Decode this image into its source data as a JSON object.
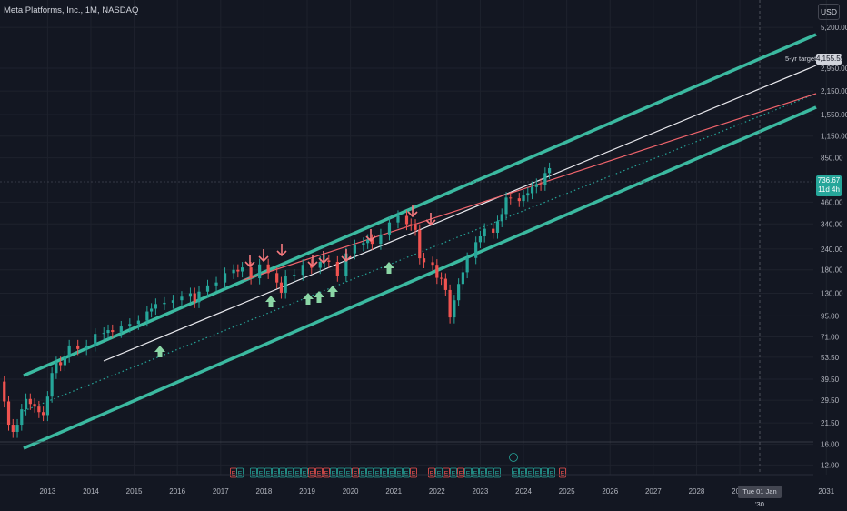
{
  "header": {
    "title": "Meta Platforms, Inc., 1M, NASDAQ",
    "currency": "USD"
  },
  "badges": {
    "last_price": "736.67",
    "last_price_countdown": "11d 4h",
    "target_label": "5-yr target",
    "target_price": "4,155.59",
    "crosshair_date": "Tue 01 Jan '30"
  },
  "colors": {
    "background": "#131722",
    "up": "#26a69a",
    "down": "#ef5350",
    "channel": "#3bb9a0",
    "trend_white": "#e9e9ee",
    "trend_red": "#f0646c",
    "mid_dotted": "#26a69a",
    "arrow_up": "#8bd6a5",
    "arrow_down": "#f77a7f"
  },
  "chart_data": {
    "type": "candlestick",
    "title": "Meta Platforms, Inc., 1M, NASDAQ",
    "x_axis": {
      "ticks": [
        "2013",
        "2014",
        "2015",
        "2016",
        "2017",
        "2018",
        "2019",
        "2020",
        "2021",
        "2022",
        "2023",
        "2024",
        "2025",
        "2026",
        "2027",
        "2028",
        "2029",
        "2031"
      ],
      "range": [
        2012.4,
        2031.2
      ]
    },
    "y_axis": {
      "scale": "log",
      "ticks": [
        "12.00",
        "16.00",
        "21.50",
        "29.50",
        "39.50",
        "53.50",
        "71.00",
        "95.00",
        "130.00",
        "180.00",
        "240.00",
        "340.00",
        "460.00",
        "850.00",
        "1,150.00",
        "1,550.00",
        "2,150.00",
        "2,950.00",
        "5,200.00"
      ],
      "range": [
        10.5,
        7600
      ]
    },
    "series": [
      {
        "points": [
          [
            2012.4,
            38.2
          ],
          [
            2012.5,
            29
          ],
          [
            2012.6,
            21
          ],
          [
            2012.7,
            19
          ],
          [
            2012.8,
            21
          ],
          [
            2012.9,
            26
          ],
          [
            2013.0,
            30
          ],
          [
            2013.1,
            28
          ],
          [
            2013.2,
            27
          ],
          [
            2013.3,
            25
          ],
          [
            2013.4,
            24
          ],
          [
            2013.5,
            31
          ],
          [
            2013.6,
            43
          ],
          [
            2013.7,
            50
          ],
          [
            2013.8,
            48
          ],
          [
            2013.9,
            54
          ],
          [
            2014.0,
            63
          ],
          [
            2014.2,
            60
          ],
          [
            2014.4,
            63
          ],
          [
            2014.6,
            74
          ],
          [
            2014.8,
            75
          ],
          [
            2014.9,
            78
          ],
          [
            2015.0,
            76
          ],
          [
            2015.2,
            82
          ],
          [
            2015.4,
            85
          ],
          [
            2015.6,
            89
          ],
          [
            2015.8,
            101
          ],
          [
            2015.9,
            105
          ],
          [
            2016.0,
            112
          ],
          [
            2016.2,
            114
          ],
          [
            2016.4,
            118
          ],
          [
            2016.6,
            124
          ],
          [
            2016.8,
            130
          ],
          [
            2016.9,
            115
          ],
          [
            2017.0,
            133
          ],
          [
            2017.2,
            145
          ],
          [
            2017.4,
            151
          ],
          [
            2017.6,
            172
          ],
          [
            2017.8,
            180
          ],
          [
            2017.9,
            176
          ],
          [
            2018.0,
            186
          ],
          [
            2018.2,
            160
          ],
          [
            2018.4,
            194
          ],
          [
            2018.6,
            172
          ],
          [
            2018.8,
            151
          ],
          [
            2018.9,
            131
          ],
          [
            2019.0,
            166
          ],
          [
            2019.2,
            168
          ],
          [
            2019.4,
            193
          ],
          [
            2019.6,
            185
          ],
          [
            2019.8,
            201
          ],
          [
            2019.9,
            205
          ],
          [
            2020.0,
            201
          ],
          [
            2020.2,
            166
          ],
          [
            2020.4,
            226
          ],
          [
            2020.6,
            253
          ],
          [
            2020.8,
            261
          ],
          [
            2020.9,
            273
          ],
          [
            2021.0,
            258
          ],
          [
            2021.2,
            294
          ],
          [
            2021.4,
            347
          ],
          [
            2021.6,
            380
          ],
          [
            2021.8,
            339
          ],
          [
            2021.9,
            336
          ],
          [
            2022.0,
            313
          ],
          [
            2022.1,
            211
          ],
          [
            2022.2,
            200
          ],
          [
            2022.4,
            193
          ],
          [
            2022.5,
            161
          ],
          [
            2022.6,
            159
          ],
          [
            2022.7,
            136
          ],
          [
            2022.8,
            93
          ],
          [
            2022.9,
            118
          ],
          [
            2023.0,
            148
          ],
          [
            2023.1,
            174
          ],
          [
            2023.2,
            212
          ],
          [
            2023.4,
            264
          ],
          [
            2023.5,
            286
          ],
          [
            2023.6,
            318
          ],
          [
            2023.8,
            301
          ],
          [
            2023.9,
            353
          ],
          [
            2024.0,
            390
          ],
          [
            2024.1,
            490
          ],
          [
            2024.2,
            485
          ],
          [
            2024.4,
            467
          ],
          [
            2024.5,
            504
          ],
          [
            2024.6,
            521
          ],
          [
            2024.7,
            567
          ],
          [
            2024.8,
            591
          ],
          [
            2024.9,
            585
          ],
          [
            2025.0,
            689
          ],
          [
            2025.1,
            736.67
          ]
        ]
      }
    ],
    "annotations": {
      "channel_lines": "upper and lower parallel regression channel",
      "target_level": "4,155.59",
      "arrows_up_count": 6,
      "arrows_down_count": 9,
      "earnings_markers": "E"
    }
  }
}
